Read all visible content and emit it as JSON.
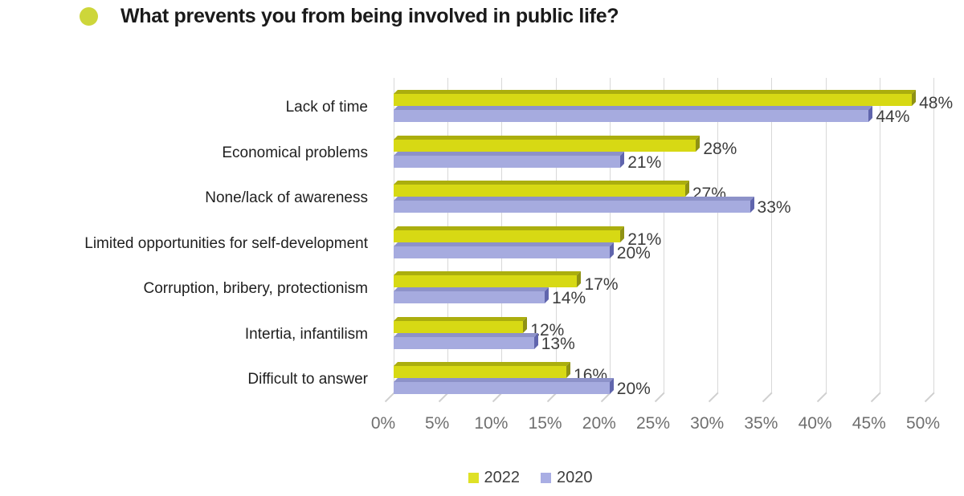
{
  "header": {
    "bullet_color": "#cdd63a",
    "title": "What prevents you from being involved in public life?"
  },
  "chart_data": {
    "type": "bar",
    "orientation": "horizontal",
    "title": "What prevents you from being involved in public life?",
    "categories": [
      "Lack of time",
      "Economical problems",
      "None/lack of awareness",
      "Limited opportunities for self-development",
      "Corruption, bribery, protectionism",
      "Intertia, infantilism",
      "Difficult to answer"
    ],
    "series": [
      {
        "name": "2022",
        "color": "#d7d914",
        "top_color": "#abae0e",
        "side_color": "#8f9214",
        "legend_color": "#dfe126",
        "values": [
          48,
          28,
          27,
          21,
          17,
          12,
          16
        ]
      },
      {
        "name": "2020",
        "color": "#a6abdf",
        "top_color": "#8d92c9",
        "side_color": "#6065ad",
        "legend_color": "#a9aee4",
        "values": [
          44,
          21,
          33,
          20,
          14,
          13,
          20
        ]
      }
    ],
    "x_ticks": [
      "0%",
      "5%",
      "10%",
      "15%",
      "20%",
      "25%",
      "30%",
      "35%",
      "40%",
      "45%",
      "50%"
    ],
    "xlim": [
      0,
      50
    ],
    "value_suffix": "%",
    "grid": true,
    "grid_color": "#d8d8d8",
    "tick_mark_color": "#cfcfcf",
    "tick_color": "#6f6f6f",
    "value_label_color": "#3d3d3d",
    "category_label_color": "#1f1f1f",
    "legend_position": "bottom"
  }
}
